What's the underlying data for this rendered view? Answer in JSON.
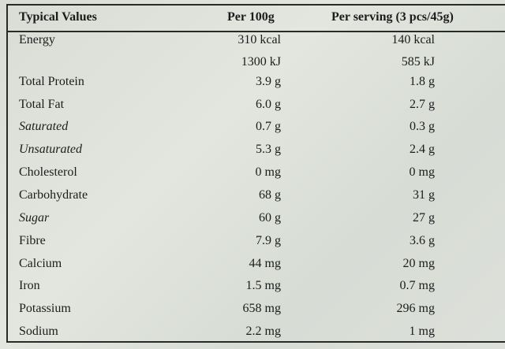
{
  "table": {
    "headers": {
      "label": "Typical Values",
      "per_100g": "Per 100g",
      "per_serving": "Per serving (3 pcs/45g)"
    },
    "rows": [
      {
        "label": "Energy",
        "per_100g": "310 kcal",
        "per_serving": "140 kcal",
        "italic": false
      },
      {
        "label": "",
        "per_100g": "1300 kJ",
        "per_serving": "585 kJ",
        "italic": false
      },
      {
        "label": "Total Protein",
        "per_100g": "3.9 g",
        "per_serving": "1.8 g",
        "italic": false
      },
      {
        "label": "Total Fat",
        "per_100g": "6.0 g",
        "per_serving": "2.7 g",
        "italic": false
      },
      {
        "label": "Saturated",
        "per_100g": "0.7 g",
        "per_serving": "0.3 g",
        "italic": true
      },
      {
        "label": "Unsaturated",
        "per_100g": "5.3 g",
        "per_serving": "2.4 g",
        "italic": true
      },
      {
        "label": "Cholesterol",
        "per_100g": "0 mg",
        "per_serving": "0 mg",
        "italic": false
      },
      {
        "label": "Carbohydrate",
        "per_100g": "68 g",
        "per_serving": "31 g",
        "italic": false
      },
      {
        "label": "Sugar",
        "per_100g": "60 g",
        "per_serving": "27 g",
        "italic": true
      },
      {
        "label": "Fibre",
        "per_100g": "7.9 g",
        "per_serving": "3.6 g",
        "italic": false
      },
      {
        "label": "Calcium",
        "per_100g": "44 mg",
        "per_serving": "20 mg",
        "italic": false
      },
      {
        "label": "Iron",
        "per_100g": "1.5 mg",
        "per_serving": "0.7 mg",
        "italic": false
      },
      {
        "label": "Potassium",
        "per_100g": "658 mg",
        "per_serving": "296 mg",
        "italic": false
      },
      {
        "label": "Sodium",
        "per_100g": "2.2 mg",
        "per_serving": "1 mg",
        "italic": false
      }
    ]
  }
}
